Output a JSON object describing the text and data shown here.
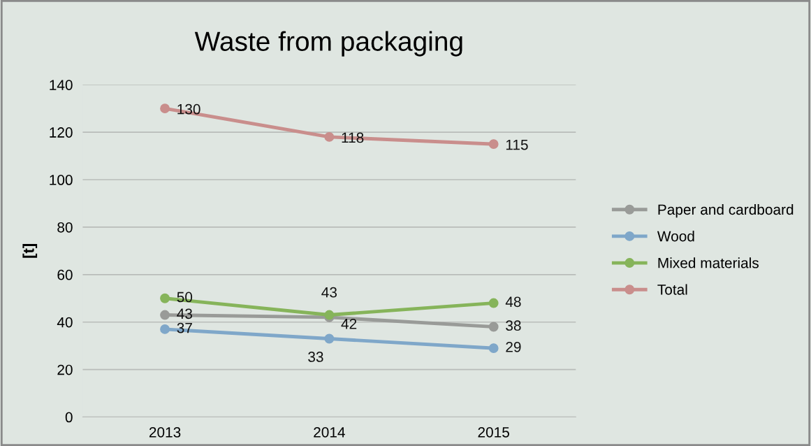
{
  "chart_data": {
    "type": "line",
    "title": "Waste from packaging",
    "ylabel": "[t]",
    "categories": [
      "2013",
      "2014",
      "2015"
    ],
    "series": [
      {
        "name": "Paper and cardboard",
        "color": "#999b98",
        "values": [
          43,
          42,
          38
        ]
      },
      {
        "name": "Wood",
        "color": "#7fa7c9",
        "values": [
          37,
          33,
          29
        ]
      },
      {
        "name": "Mixed materials",
        "color": "#86b45a",
        "values": [
          50,
          43,
          48
        ]
      },
      {
        "name": "Total",
        "color": "#c98e8c",
        "values": [
          130,
          118,
          115
        ]
      }
    ],
    "ylim": [
      0,
      140
    ],
    "yticks": [
      0,
      20,
      40,
      60,
      80,
      100,
      120,
      140
    ],
    "grid": "y",
    "legend": "right",
    "marker": "circle",
    "data_labels": true
  }
}
